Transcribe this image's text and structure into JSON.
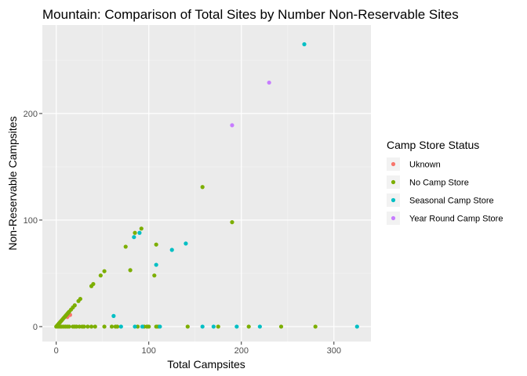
{
  "chart_data": {
    "type": "scatter",
    "title": "Mountain: Comparison of Total Sites by Number Non-Reservable Sites",
    "xlabel": "Total Campsites",
    "ylabel": "Non-Reservable Campsites",
    "xlim": [
      -15,
      340
    ],
    "ylim": [
      -14,
      283
    ],
    "x_ticks": [
      0,
      100,
      200,
      300
    ],
    "y_ticks": [
      0,
      100,
      200
    ],
    "x_tick_labels": [
      "0",
      "100",
      "200",
      "300"
    ],
    "y_tick_labels": [
      "0",
      "100",
      "200"
    ],
    "grid": true,
    "legend": {
      "title": "Camp Store Status",
      "position": "right"
    },
    "series": [
      {
        "name": "Uknown",
        "color": "#F8766D",
        "points": [
          [
            15,
            11
          ],
          [
            12,
            9
          ],
          [
            5,
            0
          ]
        ]
      },
      {
        "name": "No Camp Store",
        "color": "#7CAE00",
        "points": [
          [
            0,
            0
          ],
          [
            1,
            1
          ],
          [
            2,
            2
          ],
          [
            3,
            3
          ],
          [
            4,
            4
          ],
          [
            5,
            5
          ],
          [
            6,
            6
          ],
          [
            7,
            7
          ],
          [
            8,
            8
          ],
          [
            9,
            9
          ],
          [
            10,
            10
          ],
          [
            11,
            11
          ],
          [
            12,
            12
          ],
          [
            13,
            13
          ],
          [
            14,
            14
          ],
          [
            16,
            16
          ],
          [
            18,
            18
          ],
          [
            20,
            20
          ],
          [
            24,
            24
          ],
          [
            26,
            26
          ],
          [
            38,
            38
          ],
          [
            40,
            40
          ],
          [
            48,
            48
          ],
          [
            52,
            52
          ],
          [
            75,
            75
          ],
          [
            80,
            53
          ],
          [
            85,
            88
          ],
          [
            92,
            92
          ],
          [
            106,
            48
          ],
          [
            108,
            77
          ],
          [
            158,
            131
          ],
          [
            190,
            98
          ],
          [
            2,
            0
          ],
          [
            4,
            0
          ],
          [
            6,
            0
          ],
          [
            8,
            0
          ],
          [
            10,
            0
          ],
          [
            12,
            0
          ],
          [
            14,
            0
          ],
          [
            18,
            0
          ],
          [
            20,
            0
          ],
          [
            22,
            0
          ],
          [
            25,
            0
          ],
          [
            28,
            0
          ],
          [
            30,
            0
          ],
          [
            34,
            0
          ],
          [
            38,
            0
          ],
          [
            42,
            0
          ],
          [
            52,
            0
          ],
          [
            60,
            0
          ],
          [
            64,
            0
          ],
          [
            66,
            0
          ],
          [
            88,
            0
          ],
          [
            95,
            0
          ],
          [
            98,
            0
          ],
          [
            100,
            0
          ],
          [
            108,
            0
          ],
          [
            110,
            0
          ],
          [
            142,
            0
          ],
          [
            175,
            0
          ],
          [
            208,
            0
          ],
          [
            243,
            0
          ],
          [
            280,
            0
          ]
        ]
      },
      {
        "name": "Seasonal Camp Store",
        "color": "#00BFC4",
        "points": [
          [
            62,
            10
          ],
          [
            70,
            0
          ],
          [
            85,
            0
          ],
          [
            84,
            84
          ],
          [
            90,
            88
          ],
          [
            108,
            58
          ],
          [
            125,
            72
          ],
          [
            140,
            78
          ],
          [
            112,
            0
          ],
          [
            158,
            0
          ],
          [
            170,
            0
          ],
          [
            195,
            0
          ],
          [
            220,
            0
          ],
          [
            268,
            265
          ],
          [
            325,
            0
          ],
          [
            93,
            0
          ]
        ]
      },
      {
        "name": "Year Round Camp Store",
        "color": "#C77CFF",
        "points": [
          [
            190,
            189
          ],
          [
            230,
            229
          ]
        ]
      }
    ]
  }
}
